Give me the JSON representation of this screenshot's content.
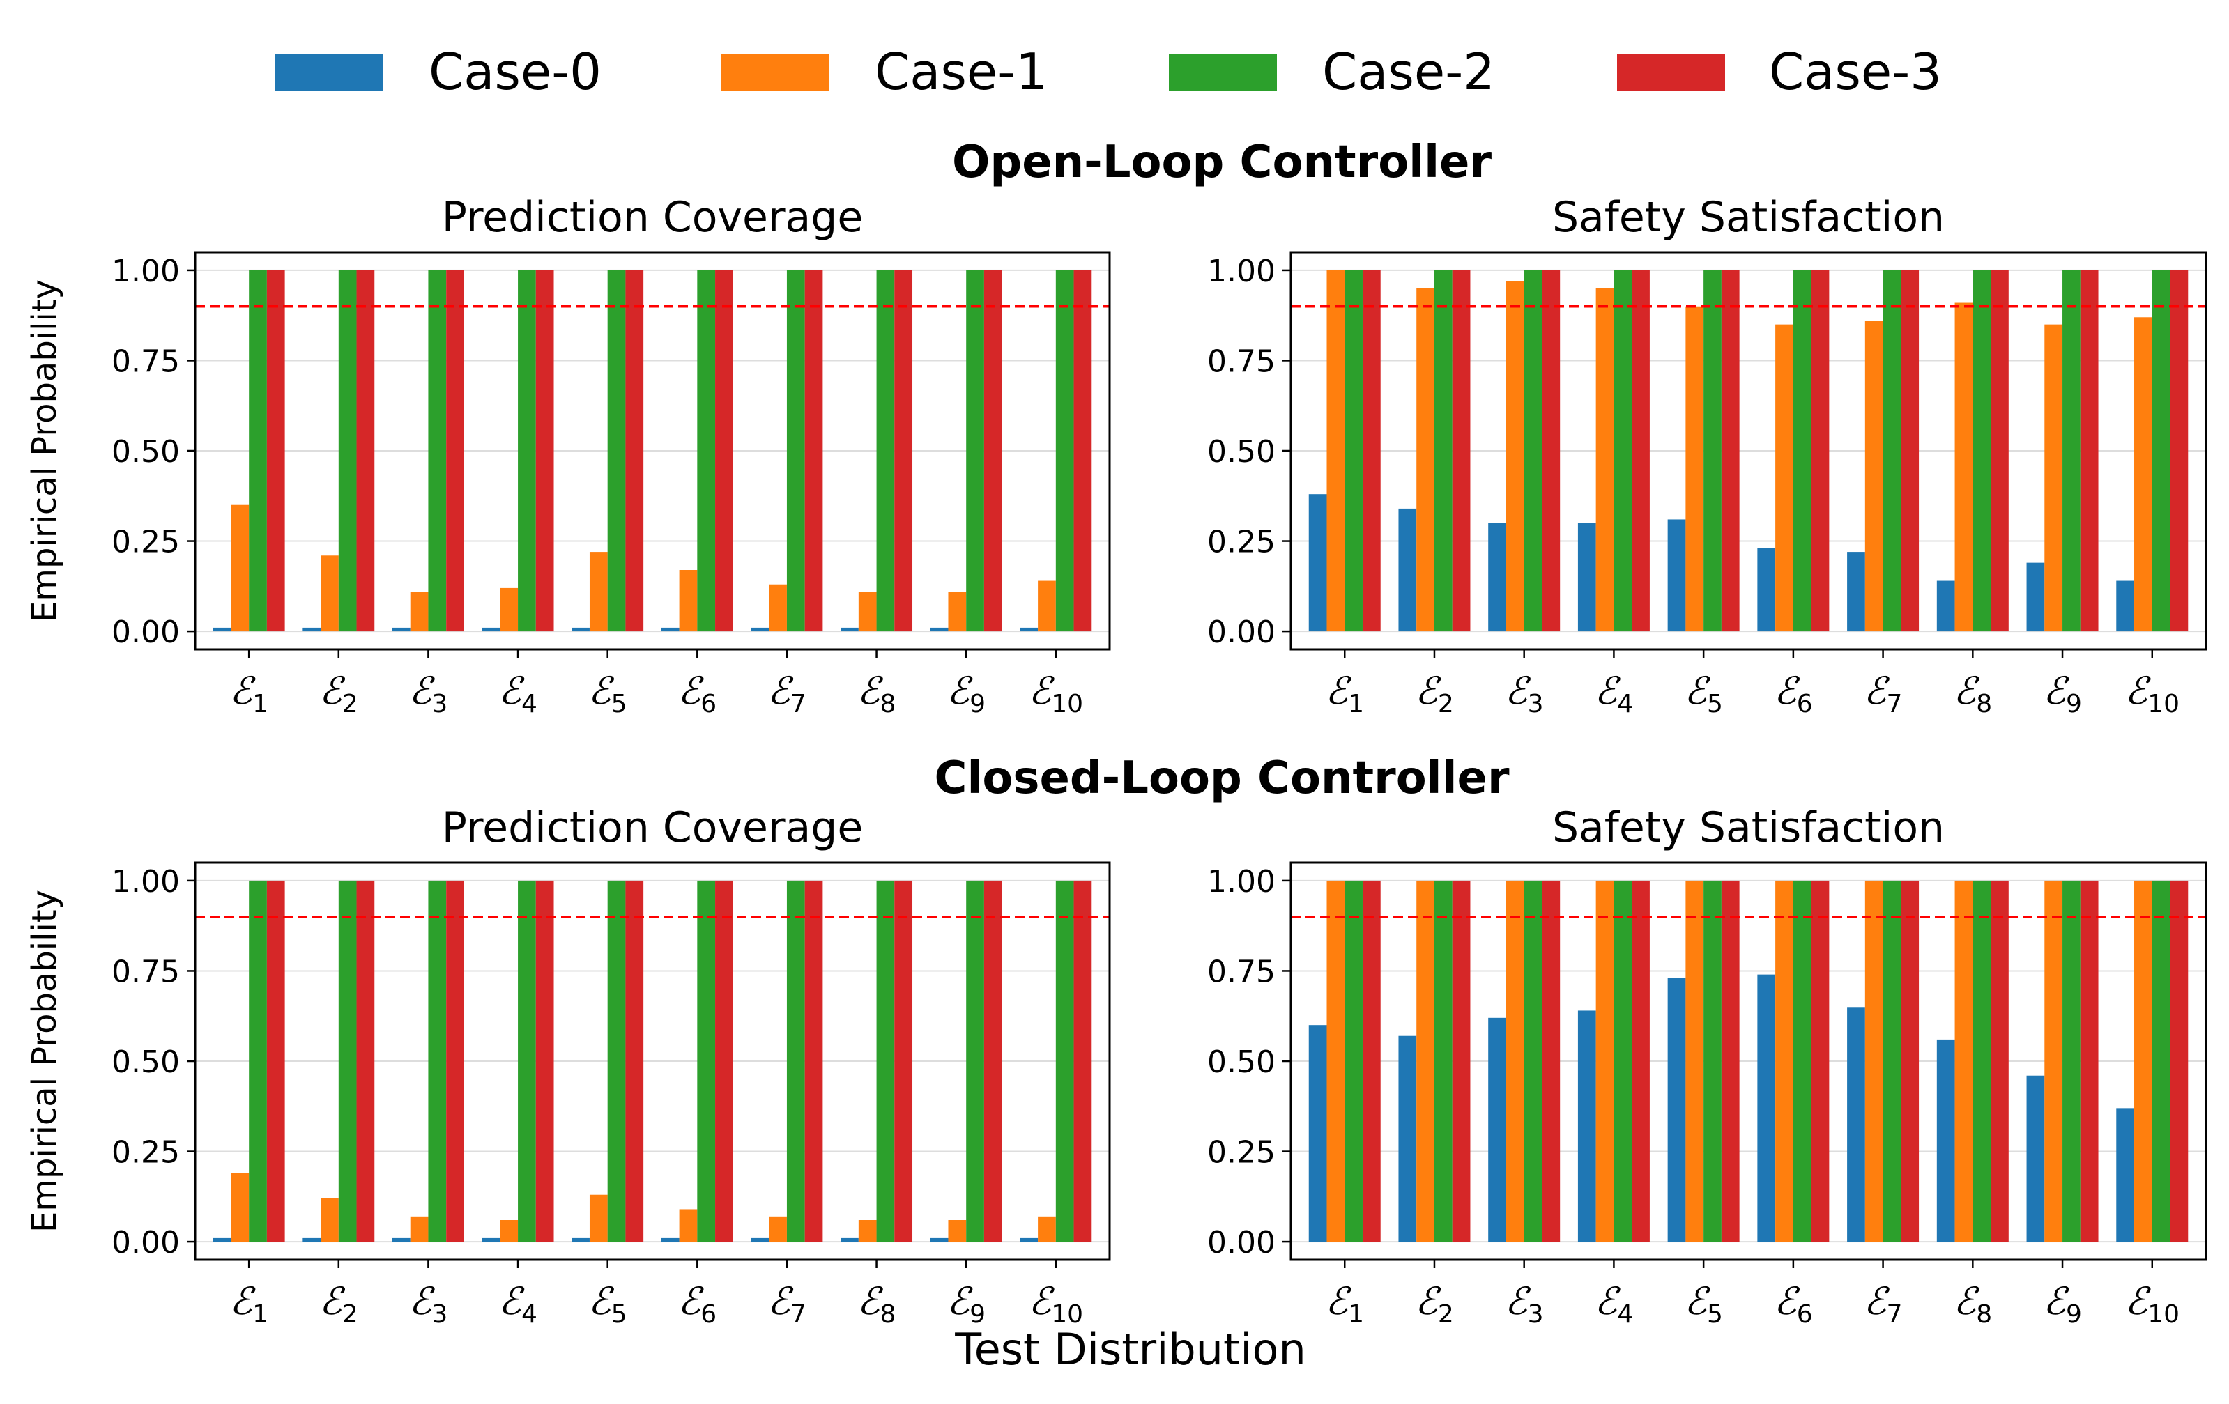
{
  "legend": [
    {
      "label": "Case-0",
      "color": "#1f77b4"
    },
    {
      "label": "Case-1",
      "color": "#ff7f0e"
    },
    {
      "label": "Case-2",
      "color": "#2ca02c"
    },
    {
      "label": "Case-3",
      "color": "#d62728"
    }
  ],
  "sections": [
    {
      "title": "Open-Loop Controller"
    },
    {
      "title": "Closed-Loop Controller"
    }
  ],
  "xlabel": "Test Distribution",
  "ylabel": "Empirical Probability",
  "chart_data": [
    {
      "type": "bar",
      "section": "Open-Loop Controller",
      "title": "Prediction Coverage",
      "ylabel": "Empirical Probability",
      "categories": [
        "1",
        "2",
        "3",
        "4",
        "5",
        "6",
        "7",
        "8",
        "9",
        "10"
      ],
      "category_symbol": "ℰ",
      "ylim": [
        -0.05,
        1.05
      ],
      "yticks": [
        "0.00",
        "0.25",
        "0.50",
        "0.75",
        "1.00"
      ],
      "threshold": 0.9,
      "grid": "y",
      "series": [
        {
          "name": "Case-0",
          "values": [
            0.01,
            0.01,
            0.01,
            0.01,
            0.01,
            0.01,
            0.01,
            0.01,
            0.01,
            0.01
          ]
        },
        {
          "name": "Case-1",
          "values": [
            0.35,
            0.21,
            0.11,
            0.12,
            0.22,
            0.17,
            0.13,
            0.11,
            0.11,
            0.14
          ]
        },
        {
          "name": "Case-2",
          "values": [
            1.0,
            1.0,
            1.0,
            1.0,
            1.0,
            1.0,
            1.0,
            1.0,
            1.0,
            1.0
          ]
        },
        {
          "name": "Case-3",
          "values": [
            1.0,
            1.0,
            1.0,
            1.0,
            1.0,
            1.0,
            1.0,
            1.0,
            1.0,
            1.0
          ]
        }
      ]
    },
    {
      "type": "bar",
      "section": "Open-Loop Controller",
      "title": "Safety Satisfaction",
      "ylabel": "",
      "categories": [
        "1",
        "2",
        "3",
        "4",
        "5",
        "6",
        "7",
        "8",
        "9",
        "10"
      ],
      "category_symbol": "ℰ",
      "ylim": [
        -0.05,
        1.05
      ],
      "yticks": [
        "0.00",
        "0.25",
        "0.50",
        "0.75",
        "1.00"
      ],
      "threshold": 0.9,
      "grid": "y",
      "series": [
        {
          "name": "Case-0",
          "values": [
            0.38,
            0.34,
            0.3,
            0.3,
            0.31,
            0.23,
            0.22,
            0.14,
            0.19,
            0.14
          ]
        },
        {
          "name": "Case-1",
          "values": [
            1.0,
            0.95,
            0.97,
            0.95,
            0.9,
            0.85,
            0.86,
            0.91,
            0.85,
            0.87
          ]
        },
        {
          "name": "Case-2",
          "values": [
            1.0,
            1.0,
            1.0,
            1.0,
            1.0,
            1.0,
            1.0,
            1.0,
            1.0,
            1.0
          ]
        },
        {
          "name": "Case-3",
          "values": [
            1.0,
            1.0,
            1.0,
            1.0,
            1.0,
            1.0,
            1.0,
            1.0,
            1.0,
            1.0
          ]
        }
      ]
    },
    {
      "type": "bar",
      "section": "Closed-Loop Controller",
      "title": "Prediction Coverage",
      "ylabel": "Empirical Probability",
      "categories": [
        "1",
        "2",
        "3",
        "4",
        "5",
        "6",
        "7",
        "8",
        "9",
        "10"
      ],
      "category_symbol": "ℰ",
      "ylim": [
        -0.05,
        1.05
      ],
      "yticks": [
        "0.00",
        "0.25",
        "0.50",
        "0.75",
        "1.00"
      ],
      "threshold": 0.9,
      "grid": "y",
      "series": [
        {
          "name": "Case-0",
          "values": [
            0.01,
            0.01,
            0.01,
            0.01,
            0.01,
            0.01,
            0.01,
            0.01,
            0.01,
            0.01
          ]
        },
        {
          "name": "Case-1",
          "values": [
            0.19,
            0.12,
            0.07,
            0.06,
            0.13,
            0.09,
            0.07,
            0.06,
            0.06,
            0.07
          ]
        },
        {
          "name": "Case-2",
          "values": [
            1.0,
            1.0,
            1.0,
            1.0,
            1.0,
            1.0,
            1.0,
            1.0,
            1.0,
            1.0
          ]
        },
        {
          "name": "Case-3",
          "values": [
            1.0,
            1.0,
            1.0,
            1.0,
            1.0,
            1.0,
            1.0,
            1.0,
            1.0,
            1.0
          ]
        }
      ]
    },
    {
      "type": "bar",
      "section": "Closed-Loop Controller",
      "title": "Safety Satisfaction",
      "ylabel": "",
      "categories": [
        "1",
        "2",
        "3",
        "4",
        "5",
        "6",
        "7",
        "8",
        "9",
        "10"
      ],
      "category_symbol": "ℰ",
      "ylim": [
        -0.05,
        1.05
      ],
      "yticks": [
        "0.00",
        "0.25",
        "0.50",
        "0.75",
        "1.00"
      ],
      "threshold": 0.9,
      "grid": "y",
      "series": [
        {
          "name": "Case-0",
          "values": [
            0.6,
            0.57,
            0.62,
            0.64,
            0.73,
            0.74,
            0.65,
            0.56,
            0.46,
            0.37
          ]
        },
        {
          "name": "Case-1",
          "values": [
            1.0,
            1.0,
            1.0,
            1.0,
            1.0,
            1.0,
            1.0,
            1.0,
            1.0,
            1.0
          ]
        },
        {
          "name": "Case-2",
          "values": [
            1.0,
            1.0,
            1.0,
            1.0,
            1.0,
            1.0,
            1.0,
            1.0,
            1.0,
            1.0
          ]
        },
        {
          "name": "Case-3",
          "values": [
            1.0,
            1.0,
            1.0,
            1.0,
            1.0,
            1.0,
            1.0,
            1.0,
            1.0,
            1.0
          ]
        }
      ]
    }
  ]
}
